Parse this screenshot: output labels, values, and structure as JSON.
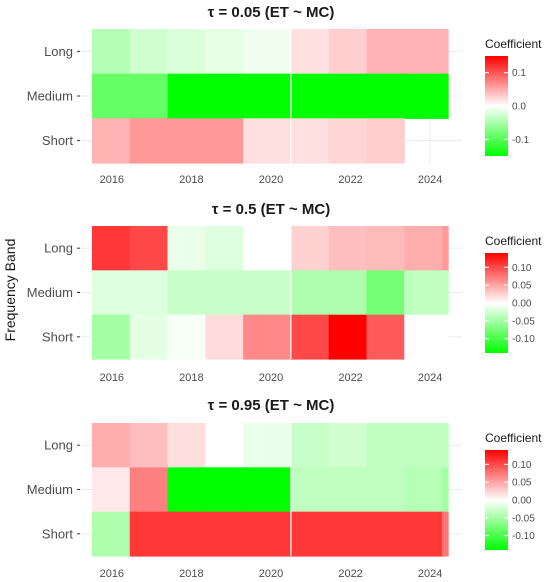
{
  "ylabel": "Frequency Band",
  "chart_data": [
    {
      "type": "heatmap",
      "title": "τ = 0.05  (ET ~ MC)",
      "rows": [
        "Long",
        "Medium",
        "Short"
      ],
      "x_ticks": [
        "2016",
        "2018",
        "2020",
        "2022",
        "2024"
      ],
      "x_ticks_values": [
        2016,
        2018,
        2020,
        2022,
        2024
      ],
      "x_range": [
        2015.2,
        2024.8
      ],
      "x_start": [
        2015.5,
        2016.45,
        2017.4,
        2018.35,
        2019.3,
        2020.5,
        2021.45,
        2022.4,
        2023.35,
        2024.3
      ],
      "x_end": [
        2016.45,
        2017.4,
        2018.35,
        2019.3,
        2020.5,
        2021.45,
        2022.4,
        2023.35,
        2024.3,
        2024.45
      ],
      "values": [
        [
          -0.045,
          -0.028,
          -0.022,
          -0.015,
          -0.008,
          0.018,
          0.028,
          0.045,
          0.045,
          0.045
        ],
        [
          -0.09,
          -0.09,
          -0.15,
          -0.15,
          -0.15,
          -0.15,
          -0.15,
          -0.15,
          -0.15,
          -0.15
        ],
        [
          0.045,
          0.06,
          0.06,
          0.06,
          0.018,
          0.018,
          0.025,
          0.028,
          null,
          null
        ]
      ],
      "legend": {
        "title": "Coefficient",
        "ticks": [
          0.1,
          0.0,
          -0.1
        ],
        "tick_labels": [
          "0.1",
          "0.0",
          "-0.1"
        ],
        "min": -0.15,
        "max": 0.15
      }
    },
    {
      "type": "heatmap",
      "title": "τ = 0.5  (ET ~ MC)",
      "rows": [
        "Long",
        "Medium",
        "Short"
      ],
      "x_ticks": [
        "2016",
        "2018",
        "2020",
        "2022",
        "2024"
      ],
      "x_ticks_values": [
        2016,
        2018,
        2020,
        2022,
        2024
      ],
      "x_range": [
        2015.2,
        2024.8
      ],
      "x_start": [
        2015.5,
        2016.45,
        2017.4,
        2018.35,
        2019.3,
        2020.5,
        2021.45,
        2022.4,
        2023.35,
        2024.3
      ],
      "x_end": [
        2016.45,
        2017.4,
        2018.35,
        2019.3,
        2020.5,
        2021.45,
        2022.4,
        2023.35,
        2024.3,
        2024.45
      ],
      "values": [
        [
          0.11,
          0.1,
          -0.012,
          -0.018,
          0.0,
          0.025,
          0.035,
          0.038,
          0.045,
          0.055
        ],
        [
          -0.018,
          -0.018,
          -0.03,
          -0.03,
          -0.03,
          -0.045,
          -0.045,
          -0.075,
          -0.035,
          -0.035
        ],
        [
          -0.05,
          -0.015,
          -0.005,
          0.02,
          0.065,
          0.1,
          0.14,
          0.09,
          0.0,
          0.0
        ]
      ],
      "legend": {
        "title": "Coefficient",
        "ticks": [
          0.1,
          0.05,
          0.0,
          -0.05,
          -0.1
        ],
        "tick_labels": [
          "0.10",
          "0.05",
          "0.00",
          "-0.05",
          "-0.10"
        ],
        "min": -0.14,
        "max": 0.14
      }
    },
    {
      "type": "heatmap",
      "title": "τ = 0.95  (ET ~ MC)",
      "rows": [
        "Long",
        "Medium",
        "Short"
      ],
      "x_ticks": [
        "2016",
        "2018",
        "2020",
        "2022",
        "2024"
      ],
      "x_ticks_values": [
        2016,
        2018,
        2020,
        2022,
        2024
      ],
      "x_range": [
        2015.2,
        2024.8
      ],
      "x_start": [
        2015.5,
        2016.45,
        2017.4,
        2018.35,
        2019.3,
        2020.5,
        2021.45,
        2022.4,
        2023.35,
        2024.3
      ],
      "x_end": [
        2016.45,
        2017.4,
        2018.35,
        2019.3,
        2020.5,
        2021.45,
        2022.4,
        2023.35,
        2024.3,
        2024.45
      ],
      "values": [
        [
          0.045,
          0.035,
          0.018,
          0.0,
          -0.012,
          -0.03,
          -0.025,
          -0.035,
          -0.035,
          -0.035
        ],
        [
          0.012,
          0.07,
          -0.15,
          -0.15,
          -0.15,
          -0.035,
          -0.035,
          -0.035,
          -0.04,
          -0.05
        ],
        [
          -0.045,
          0.11,
          0.11,
          0.11,
          0.11,
          0.11,
          0.11,
          0.11,
          0.11,
          0.075
        ]
      ],
      "legend": {
        "title": "Coefficient",
        "ticks": [
          0.1,
          0.05,
          0.0,
          -0.05,
          -0.1
        ],
        "tick_labels": [
          "0.10",
          "0.05",
          "0.00",
          "-0.05",
          "-0.10"
        ],
        "min": -0.14,
        "max": 0.14
      }
    }
  ]
}
